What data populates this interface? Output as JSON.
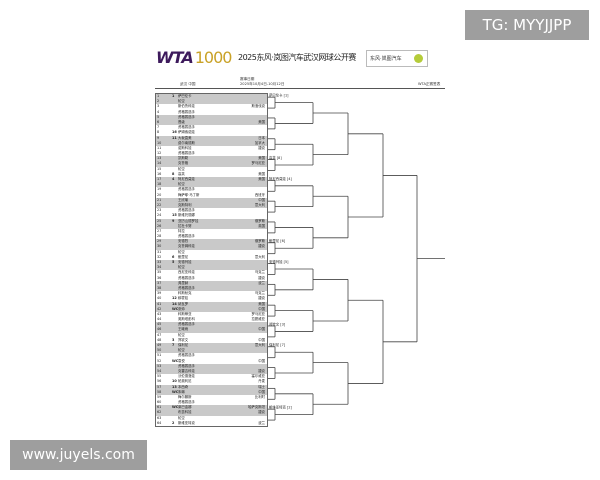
{
  "watermark_top": "TG: MYYJJPP",
  "watermark_bottom": "www.juyels.com",
  "logo": {
    "brand": "WTA",
    "tier": "1000"
  },
  "title": "2025东风·岚图汽车武汉网球公开赛",
  "sponsor": "东风·岚图汽车",
  "header": {
    "location": "武汉  中国",
    "date_label": "赛事日期",
    "dates": "2025年10月4日-10月12日",
    "right_label": "WTA正赛签表"
  },
  "draw": [
    {
      "s": "1",
      "p": "萨巴伦卡",
      "c": ""
    },
    {
      "s": "",
      "p": "轮空",
      "c": ""
    },
    {
      "s": "",
      "p": "斯伯鲁科娃",
      "c": "斯洛伐克"
    },
    {
      "s": "",
      "p": "资格赛选手",
      "c": ""
    },
    {
      "s": "",
      "p": "资格赛选手",
      "c": ""
    },
    {
      "s": "",
      "p": "晋级",
      "c": "美国"
    },
    {
      "s": "",
      "p": "资格赛选手",
      "c": ""
    },
    {
      "s": "16",
      "p": "萨姆索诺娃",
      "c": ""
    },
    {
      "s": "11",
      "p": "大坂直美",
      "c": "日本"
    },
    {
      "s": "",
      "p": "费尔南德斯",
      "c": "加拿大"
    },
    {
      "s": "",
      "p": "诺斯科娃",
      "c": "捷克"
    },
    {
      "s": "",
      "p": "资格赛选手",
      "c": ""
    },
    {
      "s": "",
      "p": "凯斯勒",
      "c": "美国"
    },
    {
      "s": "",
      "p": "克鲁格",
      "c": "罗马尼亚"
    },
    {
      "s": "",
      "p": "轮空",
      "c": ""
    },
    {
      "s": "8",
      "p": "高芙",
      "c": "美国"
    },
    {
      "s": "4",
      "p": "阿尼西莫娃",
      "c": "美国"
    },
    {
      "s": "",
      "p": "轮空",
      "c": ""
    },
    {
      "s": "",
      "p": "资格赛选手",
      "c": ""
    },
    {
      "s": "",
      "p": "梅萨耶·马丁斯",
      "c": "西班牙"
    },
    {
      "s": "",
      "p": "王欣瑜",
      "c": "中国"
    },
    {
      "s": "",
      "p": "克斯特利",
      "c": "意大利"
    },
    {
      "s": "",
      "p": "资格赛选手",
      "c": ""
    },
    {
      "s": "15",
      "p": "斯维托丽娜",
      "c": ""
    },
    {
      "s": "9",
      "p": "亚历山德罗娃",
      "c": "俄罗斯"
    },
    {
      "s": "",
      "p": "拉杜卡努",
      "c": "英国"
    },
    {
      "s": "",
      "p": "特拉",
      "c": ""
    },
    {
      "s": "",
      "p": "资格赛选手",
      "c": ""
    },
    {
      "s": "",
      "p": "安德烈",
      "c": "俄罗斯"
    },
    {
      "s": "",
      "p": "克鲁姆科娃",
      "c": "捷克"
    },
    {
      "s": "",
      "p": "轮空",
      "c": ""
    },
    {
      "s": "6",
      "p": "鲍里尼",
      "c": "意大利"
    },
    {
      "s": "5",
      "p": "安德列娃",
      "c": ""
    },
    {
      "s": "",
      "p": "轮空",
      "c": ""
    },
    {
      "s": "",
      "p": "西尼亚科娃",
      "c": "乌克兰"
    },
    {
      "s": "",
      "p": "资格赛选手",
      "c": "捷克"
    },
    {
      "s": "",
      "p": "弗里赫",
      "c": "波兰"
    },
    {
      "s": "",
      "p": "资格赛选手",
      "c": ""
    },
    {
      "s": "",
      "p": "科斯秋克",
      "c": "乌克兰"
    },
    {
      "s": "12",
      "p": "穆霍娃",
      "c": "捷克"
    },
    {
      "s": "14",
      "p": "纳瓦罗",
      "c": "美国"
    },
    {
      "s": "WC",
      "p": "张帅",
      "c": "中国"
    },
    {
      "s": "",
      "p": "科斯蒂亚",
      "c": "罗马尼亚"
    },
    {
      "s": "",
      "p": "奥斯塔彭科",
      "c": "拉脱维亚"
    },
    {
      "s": "",
      "p": "资格赛选手",
      "c": ""
    },
    {
      "s": "",
      "p": "王曦雨",
      "c": "中国"
    },
    {
      "s": "",
      "p": "轮空",
      "c": ""
    },
    {
      "s": "3",
      "p": "郑钦文",
      "c": "中国"
    },
    {
      "s": "7",
      "p": "保利尼",
      "c": "意大利"
    },
    {
      "s": "",
      "p": "轮空",
      "c": ""
    },
    {
      "s": "",
      "p": "资格赛选手",
      "c": ""
    },
    {
      "s": "WC",
      "p": "袁悦",
      "c": "中国"
    },
    {
      "s": "",
      "p": "资格赛选手",
      "c": ""
    },
    {
      "s": "",
      "p": "克雷吉科娃",
      "c": "捷克"
    },
    {
      "s": "",
      "p": "沃伦德洛娃",
      "c": "塞尔维亚"
    },
    {
      "s": "10",
      "p": "帕奥利尼",
      "c": "丹麦"
    },
    {
      "s": "13",
      "p": "本西奇",
      "c": "瑞士"
    },
    {
      "s": "WC",
      "p": "朱琳",
      "c": "中国"
    },
    {
      "s": "",
      "p": "梅尔滕斯",
      "c": "比利时"
    },
    {
      "s": "",
      "p": "资格赛选手",
      "c": ""
    },
    {
      "s": "WC",
      "p": "莱巴金娜",
      "c": "哈萨克斯坦"
    },
    {
      "s": "",
      "p": "布兹科娃",
      "c": "捷克"
    },
    {
      "s": "",
      "p": "轮空",
      "c": ""
    },
    {
      "s": "2",
      "p": "斯维亚特克",
      "c": "波兰"
    }
  ],
  "r1_winners": [
    "萨巴伦卡 [1]",
    "",
    "",
    "高芙 [8]",
    "阿尼西莫娃 [4]",
    "",
    "",
    "鲍里尼 [6]",
    "安德列娃 [5]",
    "",
    "",
    "郑钦文 [3]",
    "保利尼 [7]",
    "",
    "",
    "斯维亚特克 [2]"
  ]
}
